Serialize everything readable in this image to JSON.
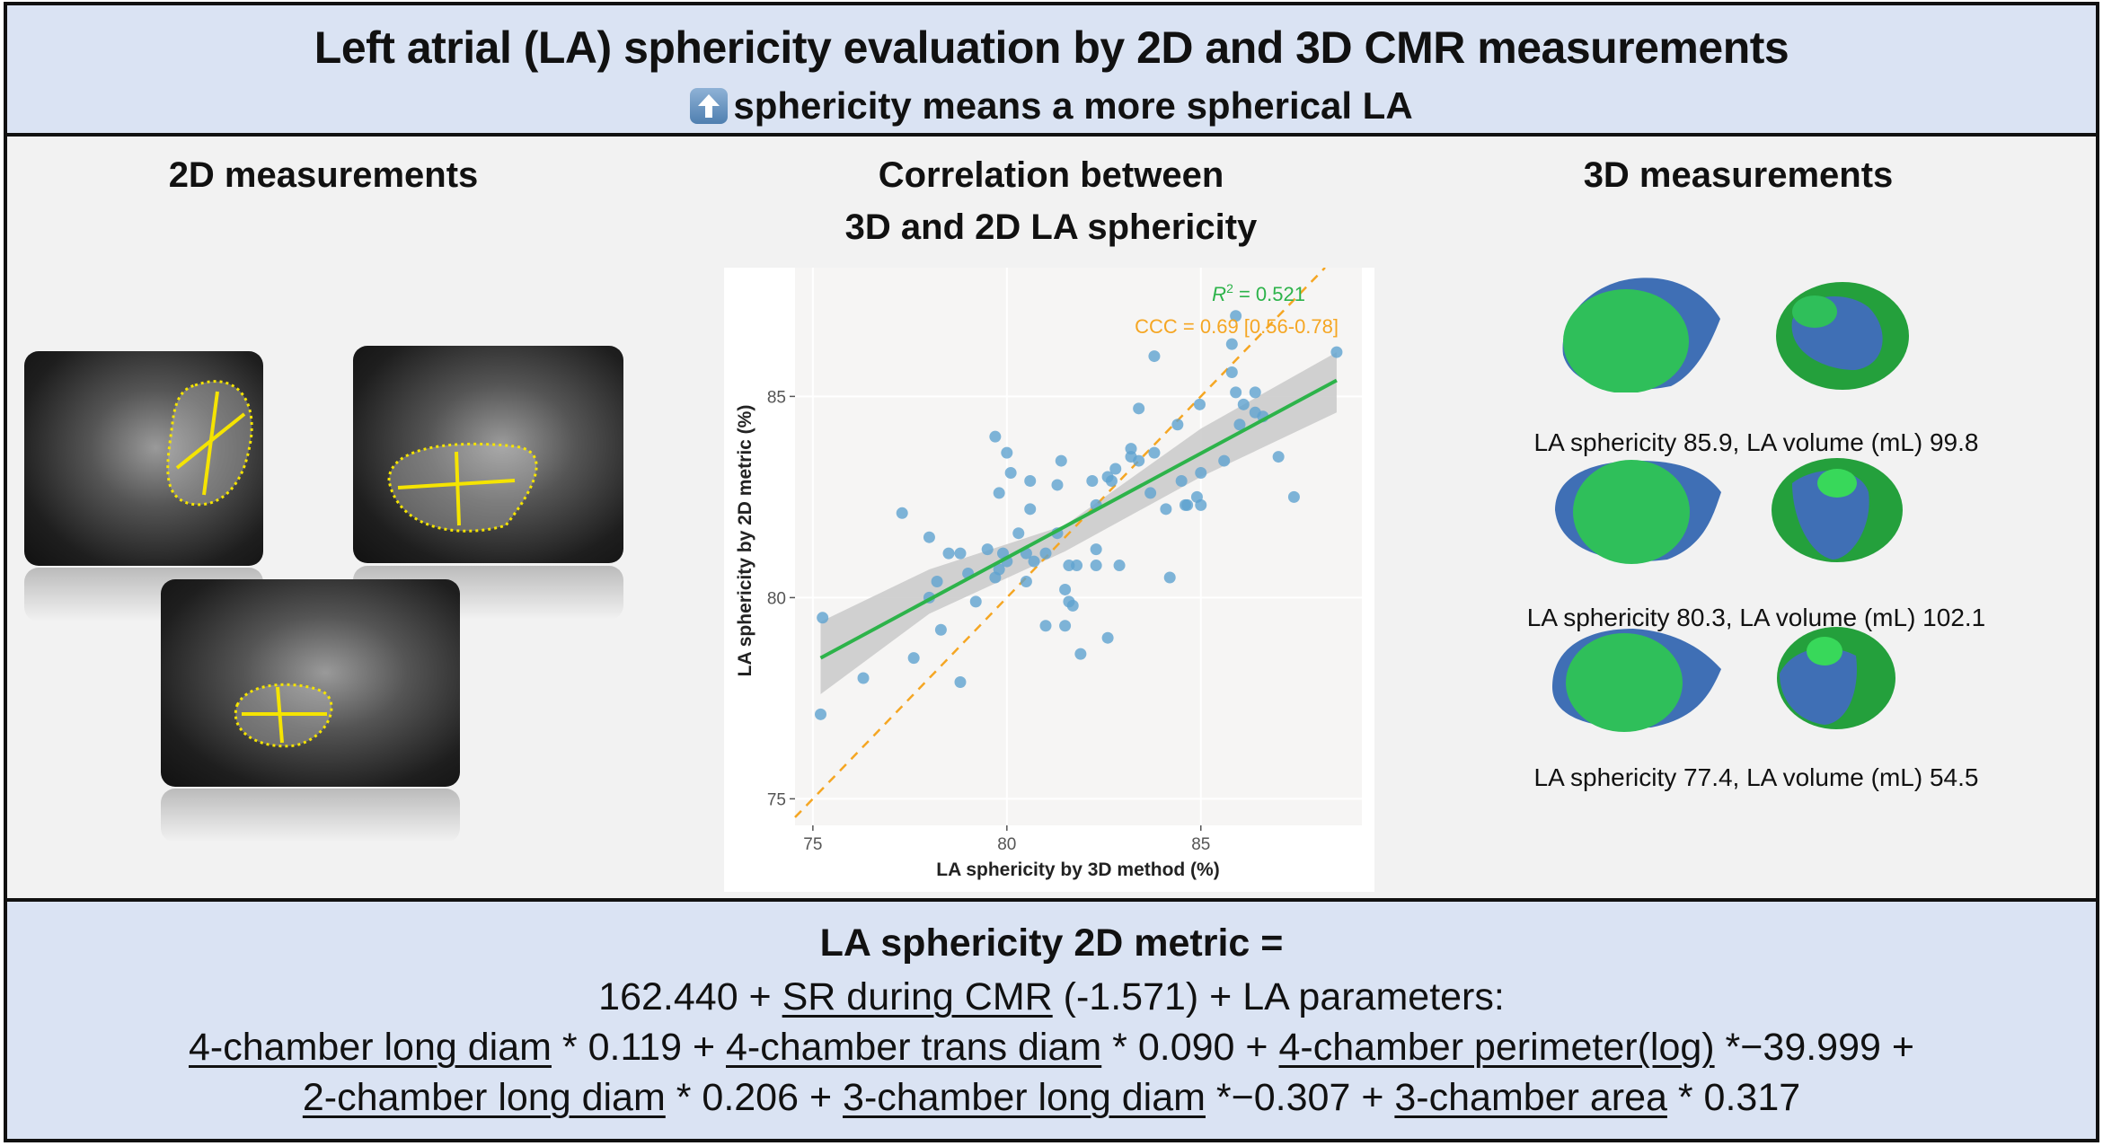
{
  "header": {
    "title": "Left atrial (LA) sphericity evaluation by 2D and 3D CMR measurements",
    "subtitle": "sphericity means a more spherical LA",
    "subtitle_icon": "up-arrow-icon"
  },
  "sections": {
    "left_title": "2D measurements",
    "center_title_line1": "Correlation between",
    "center_title_line2": "3D and 2D LA sphericity",
    "right_title": "3D measurements"
  },
  "three_d": [
    {
      "caption": "LA sphericity 85.9, LA volume (mL) 99.8"
    },
    {
      "caption": "LA sphericity 80.3, LA volume (mL) 102.1"
    },
    {
      "caption": "LA sphericity 77.4, LA volume (mL) 54.5"
    }
  ],
  "colors": {
    "header_bg": "#dae3f3",
    "points": "#5fa2d0",
    "fit": "#2db34a",
    "identity": "#f5a623",
    "band": "#c9c9c9",
    "model_blue": "#3f6fb5",
    "model_green": "#2fbf5a"
  },
  "chart_data": {
    "type": "scatter",
    "xlabel": "LA sphericity by 3D method (%)",
    "ylabel": "LA sphericity by 2D metric (%)",
    "xlim": [
      74.54,
      89.15
    ],
    "ylim": [
      74.34,
      88.2
    ],
    "xticks": [
      75,
      80,
      85
    ],
    "yticks": [
      75,
      80,
      85
    ],
    "grid": true,
    "annotations": {
      "r2_prefix": "R",
      "r2_sup": "2",
      "r2_value": " = 0.521",
      "ccc": "CCC = 0.69 [0.56-0.78]"
    },
    "points": [
      [
        75.25,
        79.5
      ],
      [
        75.2,
        77.1
      ],
      [
        76.3,
        78.0
      ],
      [
        77.3,
        82.1
      ],
      [
        77.6,
        78.5
      ],
      [
        78.0,
        81.5
      ],
      [
        78.0,
        80.0
      ],
      [
        78.2,
        80.4
      ],
      [
        78.3,
        79.2
      ],
      [
        78.5,
        81.1
      ],
      [
        78.8,
        77.9
      ],
      [
        78.8,
        81.1
      ],
      [
        79.0,
        80.6
      ],
      [
        79.2,
        79.9
      ],
      [
        79.5,
        81.2
      ],
      [
        79.7,
        84.0
      ],
      [
        79.8,
        82.6
      ],
      [
        79.7,
        80.5
      ],
      [
        79.8,
        80.7
      ],
      [
        79.9,
        81.1
      ],
      [
        80.0,
        80.9
      ],
      [
        80.0,
        83.6
      ],
      [
        80.1,
        83.1
      ],
      [
        80.3,
        81.6
      ],
      [
        80.5,
        81.1
      ],
      [
        80.5,
        80.4
      ],
      [
        80.6,
        82.9
      ],
      [
        80.6,
        82.2
      ],
      [
        80.7,
        80.9
      ],
      [
        81.0,
        79.3
      ],
      [
        81.0,
        81.1
      ],
      [
        81.3,
        81.6
      ],
      [
        81.3,
        82.8
      ],
      [
        81.4,
        83.4
      ],
      [
        81.5,
        80.2
      ],
      [
        81.5,
        79.3
      ],
      [
        81.6,
        79.9
      ],
      [
        81.6,
        80.8
      ],
      [
        81.7,
        79.8
      ],
      [
        81.8,
        80.8
      ],
      [
        81.9,
        78.6
      ],
      [
        82.2,
        82.9
      ],
      [
        82.3,
        82.3
      ],
      [
        82.3,
        81.2
      ],
      [
        82.3,
        80.8
      ],
      [
        82.6,
        79.0
      ],
      [
        82.6,
        83.0
      ],
      [
        82.7,
        82.9
      ],
      [
        82.8,
        83.2
      ],
      [
        82.9,
        80.8
      ],
      [
        83.2,
        83.7
      ],
      [
        83.2,
        83.5
      ],
      [
        83.4,
        83.4
      ],
      [
        83.4,
        84.7
      ],
      [
        83.7,
        82.6
      ],
      [
        83.8,
        86.0
      ],
      [
        83.8,
        83.6
      ],
      [
        84.1,
        82.2
      ],
      [
        84.2,
        80.5
      ],
      [
        84.4,
        84.3
      ],
      [
        84.5,
        82.9
      ],
      [
        84.6,
        82.3
      ],
      [
        84.65,
        82.3
      ],
      [
        84.9,
        82.5
      ],
      [
        84.97,
        84.8
      ],
      [
        85.0,
        82.3
      ],
      [
        85.0,
        83.1
      ],
      [
        85.6,
        83.4
      ],
      [
        85.8,
        85.6
      ],
      [
        85.8,
        86.3
      ],
      [
        85.9,
        87.0
      ],
      [
        85.9,
        85.1
      ],
      [
        86.0,
        84.3
      ],
      [
        86.1,
        84.8
      ],
      [
        86.4,
        85.1
      ],
      [
        86.4,
        84.6
      ],
      [
        86.6,
        84.5
      ],
      [
        87.0,
        83.5
      ],
      [
        87.4,
        82.5
      ],
      [
        88.5,
        86.1
      ]
    ],
    "fit_line": {
      "x": [
        75.2,
        88.5
      ],
      "y": [
        78.5,
        85.4
      ]
    },
    "confidence_band": {
      "x": [
        75.2,
        78.0,
        81.5,
        85.0,
        88.5
      ],
      "lower": [
        77.6,
        79.6,
        81.15,
        83.0,
        84.6
      ],
      "upper": [
        79.4,
        80.7,
        81.8,
        84.2,
        86.1
      ]
    },
    "identity_line": {
      "x": [
        74.54,
        88.2
      ],
      "y": [
        74.54,
        88.2
      ]
    }
  },
  "formula": {
    "lines": [
      [
        {
          "text": "LA sphericity 2D metric =",
          "u": false
        }
      ],
      [
        {
          "text": "162.440 + ",
          "u": false
        },
        {
          "text": "SR during CMR",
          "u": true
        },
        {
          "text": " (-1.571) + LA parameters:",
          "u": false
        }
      ],
      [
        {
          "text": "4-chamber long diam",
          "u": true
        },
        {
          "text": " * 0.119 + ",
          "u": false
        },
        {
          "text": "4-chamber trans diam",
          "u": true
        },
        {
          "text": " * 0.090 + ",
          "u": false
        },
        {
          "text": "4-chamber perimeter(log)",
          "u": true
        },
        {
          "text": " *−39.999 +",
          "u": false
        }
      ],
      [
        {
          "text": "2-chamber long diam",
          "u": true
        },
        {
          "text": " * 0.206 + ",
          "u": false
        },
        {
          "text": "3-chamber long diam",
          "u": true
        },
        {
          "text": " *−0.307 +  ",
          "u": false
        },
        {
          "text": "3-chamber area",
          "u": true
        },
        {
          "text": " * 0.317",
          "u": false
        }
      ]
    ]
  }
}
